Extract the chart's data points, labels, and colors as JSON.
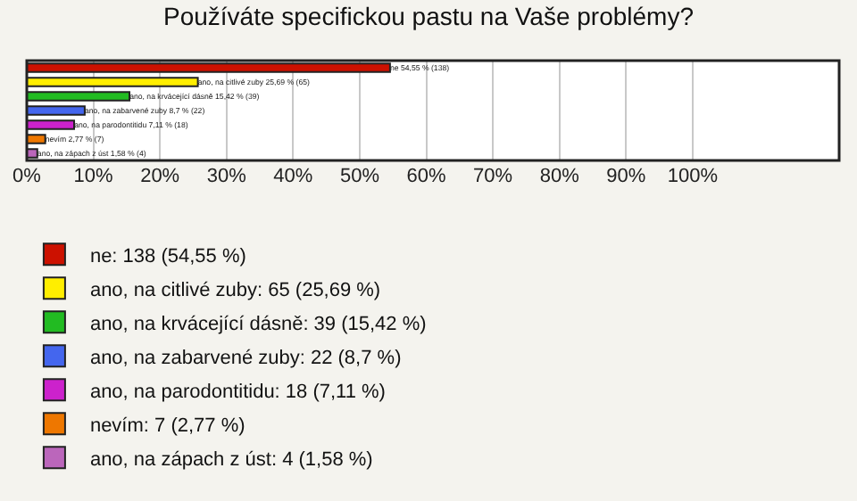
{
  "chart_data": {
    "type": "bar",
    "orientation": "horizontal",
    "title": "Používáte specifickou pastu na Vaše problémy?",
    "categories": [
      null,
      null,
      null,
      null,
      null,
      null,
      null
    ],
    "series": [
      {
        "name": "ne: 138 (54,55 %)",
        "color": "#cc1100",
        "values": [
          54.55,
          null,
          null,
          null,
          null,
          null,
          null
        ],
        "value_labels": [
          "ne 54,55 % (138)",
          null,
          null,
          null,
          null,
          null,
          null
        ]
      },
      {
        "name": "ano, na citlivé zuby: 65 (25,69 %)",
        "color": "#ffee00",
        "values": [
          null,
          25.69,
          null,
          null,
          null,
          null,
          null
        ],
        "value_labels": [
          null,
          "ano, na citlivé zuby 25,69 % (65)",
          null,
          null,
          null,
          null,
          null
        ]
      },
      {
        "name": "ano, na krvácející dásně: 39 (15,42 %)",
        "color": "#22bb22",
        "values": [
          null,
          null,
          15.42,
          null,
          null,
          null,
          null
        ],
        "value_labels": [
          null,
          null,
          "ano, na krvácející dásně 15,42 % (39)",
          null,
          null,
          null,
          null
        ]
      },
      {
        "name": "ano, na zabarvené zuby: 22 (8,7 %)",
        "color": "#4466ee",
        "values": [
          null,
          null,
          null,
          8.7,
          null,
          null,
          null
        ],
        "value_labels": [
          null,
          null,
          null,
          "ano, na zabarvené zuby 8,7 % (22)",
          null,
          null,
          null
        ]
      },
      {
        "name": "ano, na parodontitidu: 18 (7,11 %)",
        "color": "#cc22cc",
        "values": [
          null,
          null,
          null,
          null,
          7.11,
          null,
          null
        ],
        "value_labels": [
          null,
          null,
          null,
          null,
          "ano, na parodontitidu 7,11 % (18)",
          null,
          null
        ]
      },
      {
        "name": "nevím: 7 (2,77 %)",
        "color": "#ee7700",
        "values": [
          null,
          null,
          null,
          null,
          null,
          2.77,
          null
        ],
        "value_labels": [
          null,
          null,
          null,
          null,
          null,
          "nevím 2,77 % (7)",
          null
        ]
      },
      {
        "name": "ano, na zápach z úst: 4 (1,58 %)",
        "color": "#bb66bb",
        "values": [
          null,
          null,
          null,
          null,
          null,
          null,
          1.58
        ],
        "value_labels": [
          null,
          null,
          null,
          null,
          null,
          null,
          "ano, na zápach z úst 1,58 % (4)"
        ]
      }
    ],
    "xlim": [
      0,
      122
    ],
    "xticks": [
      {
        "value": 0,
        "label": "0%"
      },
      {
        "value": 10,
        "label": "10%"
      },
      {
        "value": 20,
        "label": "20%"
      },
      {
        "value": 30,
        "label": "30%"
      },
      {
        "value": 40,
        "label": "40%"
      },
      {
        "value": 50,
        "label": "50%"
      },
      {
        "value": 60,
        "label": "60%"
      },
      {
        "value": 70,
        "label": "70%"
      },
      {
        "value": 80,
        "label": "80%"
      },
      {
        "value": 90,
        "label": "90%"
      },
      {
        "value": 100,
        "label": "100%"
      }
    ],
    "grid": "x",
    "legend": "bottom"
  }
}
